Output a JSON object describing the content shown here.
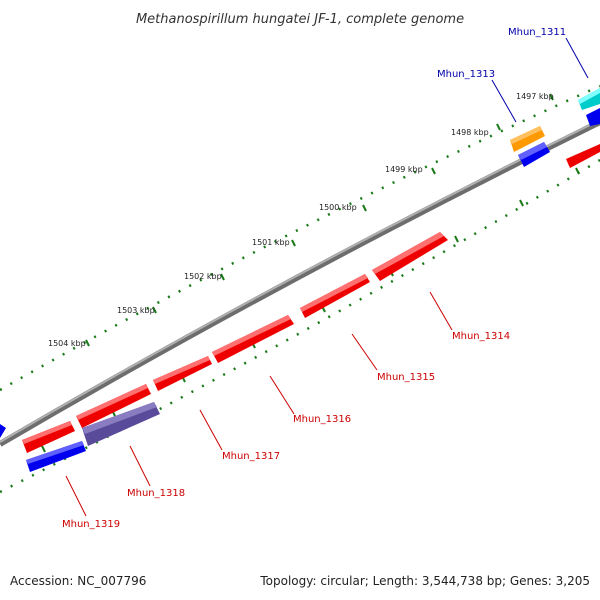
{
  "title": "Methanospirillum hungatei JF-1, complete genome",
  "accession_text": "Accession: NC_007796",
  "summary_text": "Topology: circular; Length: 3,544,738 bp; Genes: 3,205",
  "colors": {
    "backbone": "#8a8a8a",
    "tick_marks": "#1a7a1a",
    "forward_gene": "#ee0000",
    "reverse_gene": "#0000ee",
    "cyan_gene": "#00cccc",
    "orange_gene": "#ff9900",
    "purple_gene": "#5a4a9a",
    "red_label": "#cc0000",
    "blue_label": "#0000aa"
  },
  "ticks": [
    {
      "label": "1497 kbp"
    },
    {
      "label": "1498 kbp"
    },
    {
      "label": "1499 kbp"
    },
    {
      "label": "1500 kbp"
    },
    {
      "label": "1501 kbp"
    },
    {
      "label": "1502 kbp"
    },
    {
      "label": "1503 kbp"
    },
    {
      "label": "1504 kbp"
    }
  ],
  "genes": [
    {
      "name": "Mhun_1311",
      "color": "blue_label"
    },
    {
      "name": "Mhun_1313",
      "color": "blue_label"
    },
    {
      "name": "Mhun_1314",
      "color": "red_label"
    },
    {
      "name": "Mhun_1315",
      "color": "red_label"
    },
    {
      "name": "Mhun_1316",
      "color": "red_label"
    },
    {
      "name": "Mhun_1317",
      "color": "red_label"
    },
    {
      "name": "Mhun_1318",
      "color": "red_label"
    },
    {
      "name": "Mhun_1319",
      "color": "red_label"
    }
  ]
}
